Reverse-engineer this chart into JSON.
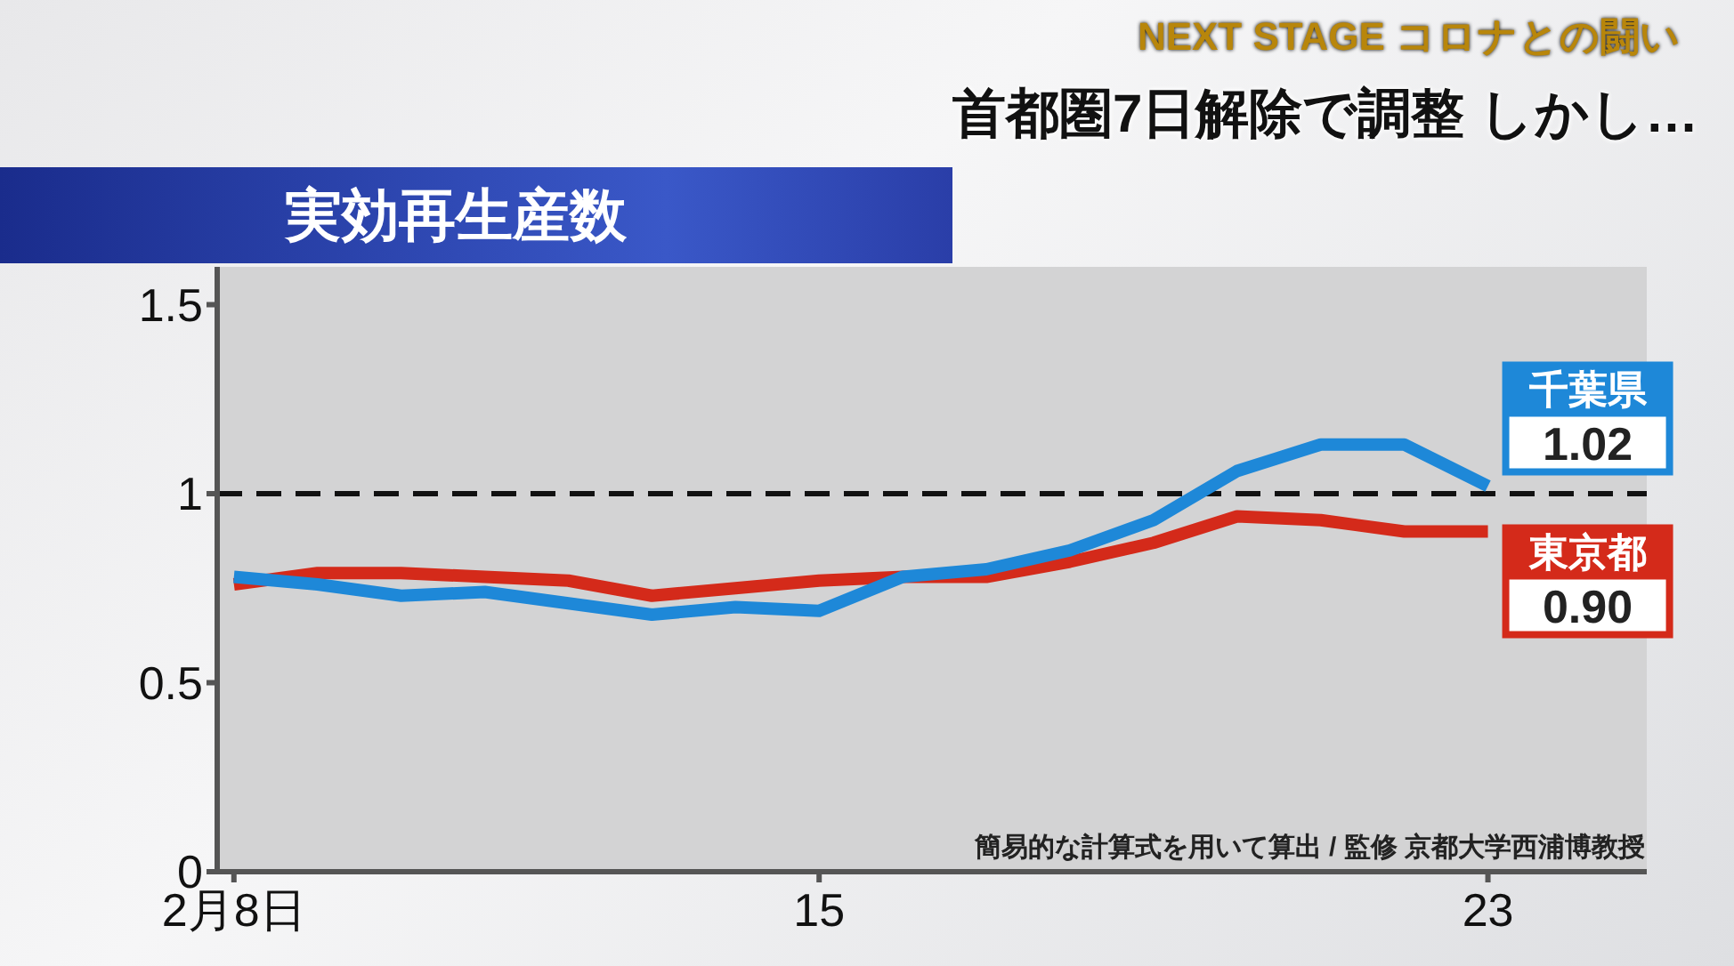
{
  "chart_data": {
    "type": "line",
    "title": "実効再生産数",
    "subtitle": "首都圏7日解除で調整 しかし…",
    "annotations": [
      "NEXT STAGE コロナとの闘い",
      "簡易的な計算式を用いて算出 / 監修 京都大学西浦博教授"
    ],
    "x": [
      8,
      9,
      10,
      11,
      12,
      13,
      14,
      15,
      16,
      17,
      18,
      19,
      20,
      21,
      22,
      23
    ],
    "xlim": [
      7.8,
      24.9
    ],
    "xticks": [
      {
        "value": 8,
        "label": "2月8日"
      },
      15,
      23
    ],
    "ylim": [
      0,
      1.6
    ],
    "yticks": [
      0,
      0.5,
      1,
      1.5
    ],
    "series": [
      {
        "name": "東京都",
        "color": "#d42a1a",
        "values": [
          0.76,
          0.79,
          0.79,
          0.78,
          0.77,
          0.73,
          0.75,
          0.77,
          0.78,
          0.78,
          0.82,
          0.87,
          0.94,
          0.93,
          0.9,
          0.9
        ],
        "value_labels": [
          null,
          null,
          null,
          null,
          null,
          null,
          null,
          null,
          null,
          null,
          null,
          null,
          null,
          null,
          null,
          "0.90"
        ]
      },
      {
        "name": "千葉県",
        "color": "#1e88d8",
        "values": [
          0.78,
          0.76,
          0.73,
          0.74,
          0.71,
          0.68,
          0.7,
          0.69,
          0.78,
          0.8,
          0.85,
          0.93,
          1.06,
          1.13,
          1.13,
          1.02
        ],
        "value_labels": [
          null,
          null,
          null,
          null,
          null,
          null,
          null,
          null,
          null,
          null,
          null,
          null,
          null,
          null,
          null,
          "1.02"
        ]
      }
    ],
    "ref_lines": [
      {
        "axis": "y",
        "value": 1,
        "color": "#111111",
        "line_style": "dashed"
      }
    ],
    "grid": false,
    "marker": "none",
    "line_style": "solid"
  }
}
